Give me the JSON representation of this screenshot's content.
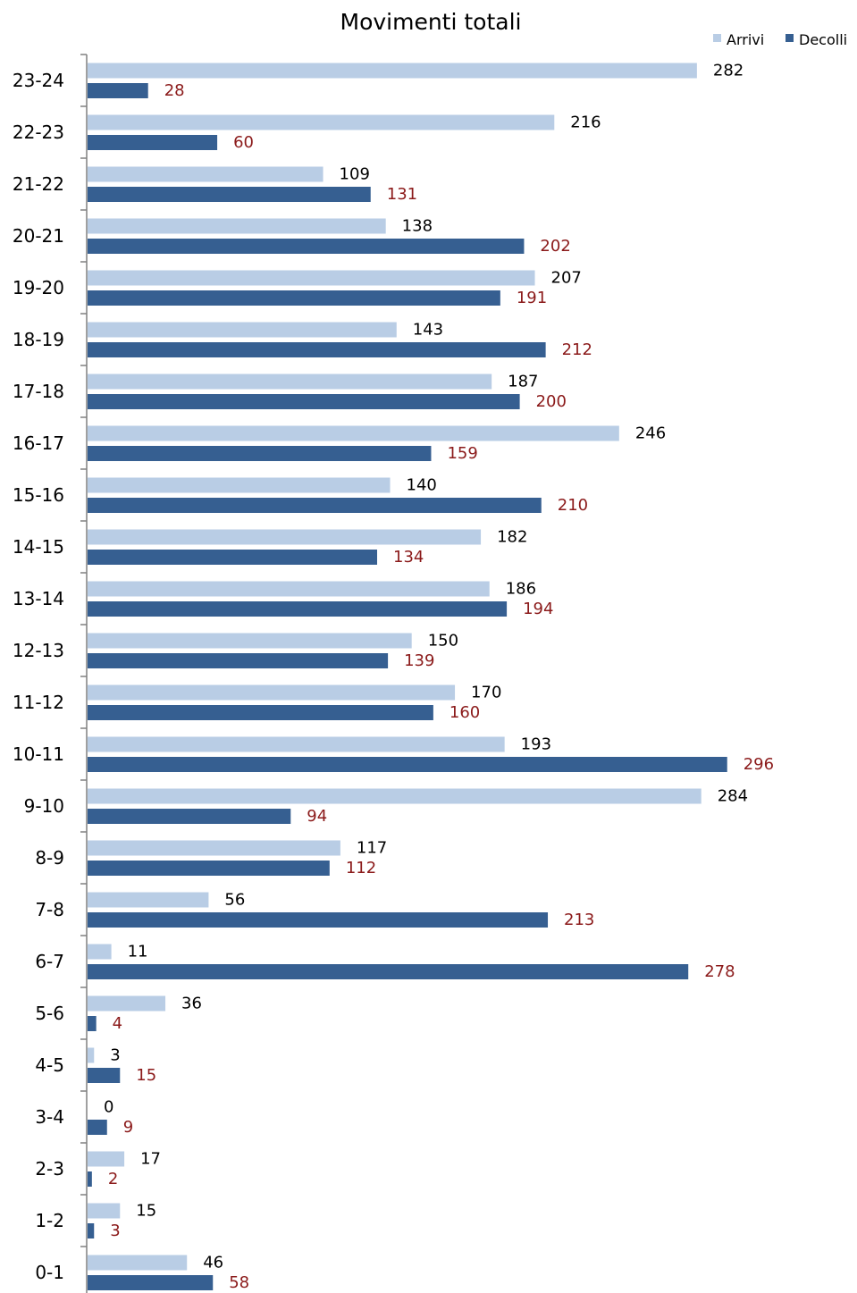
{
  "chart_data": {
    "type": "bar",
    "orientation": "horizontal",
    "title": "Movimenti totali",
    "xlabel": "",
    "ylabel": "",
    "xlim": [
      0,
      300
    ],
    "grid": false,
    "legend": "top-right",
    "categories": [
      "0-1",
      "1-2",
      "2-3",
      "3-4",
      "4-5",
      "5-6",
      "6-7",
      "7-8",
      "8-9",
      "9-10",
      "10-11",
      "11-12",
      "12-13",
      "13-14",
      "14-15",
      "15-16",
      "16-17",
      "17-18",
      "18-19",
      "19-20",
      "20-21",
      "21-22",
      "22-23",
      "23-24"
    ],
    "series": [
      {
        "name": "Arrivi",
        "color": "#B9CDE5",
        "values": [
          46,
          15,
          17,
          0,
          3,
          36,
          11,
          56,
          117,
          284,
          193,
          170,
          150,
          186,
          182,
          140,
          246,
          187,
          143,
          207,
          138,
          109,
          216,
          282
        ]
      },
      {
        "name": "Decolli",
        "color": "#365F91",
        "values": [
          58,
          3,
          2,
          9,
          15,
          4,
          278,
          213,
          112,
          94,
          296,
          160,
          139,
          194,
          134,
          210,
          159,
          200,
          212,
          191,
          202,
          131,
          60,
          28
        ]
      }
    ],
    "label_colors": {
      "Arrivi": "#000000",
      "Decolli": "#8B1A1A"
    }
  }
}
